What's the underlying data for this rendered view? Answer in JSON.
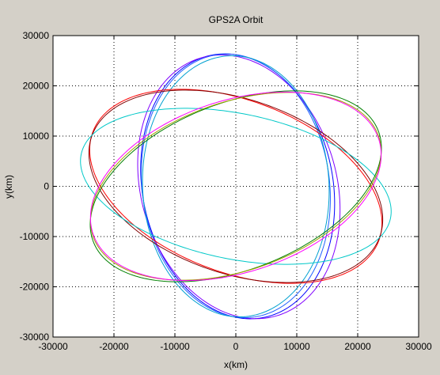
{
  "chart_data": {
    "type": "line",
    "title": "GPS2A Orbit",
    "xlabel": "x(km)",
    "ylabel": "y(km)",
    "xlim": [
      -30000,
      30000
    ],
    "ylim": [
      -30000,
      30000
    ],
    "xticks": [
      -30000,
      -20000,
      -10000,
      0,
      10000,
      20000,
      30000
    ],
    "yticks": [
      -30000,
      -20000,
      -10000,
      0,
      10000,
      20000,
      30000
    ],
    "grid": true,
    "legend": "none",
    "series": [
      {
        "color": "#0000ff",
        "ellipse": {
          "cx": 300,
          "cy": 0,
          "a": 26500,
          "b": 15700,
          "angle_deg": -83
        }
      },
      {
        "color": "#8000ff",
        "ellipse": {
          "cx": 500,
          "cy": -100,
          "a": 26500,
          "b": 16200,
          "angle_deg": -80
        }
      },
      {
        "color": "#2060ff",
        "ellipse": {
          "cx": 0,
          "cy": 100,
          "a": 26300,
          "b": 15400,
          "angle_deg": -85
        }
      },
      {
        "color": "#00a0d0",
        "ellipse": {
          "cx": 0,
          "cy": 0,
          "a": 26000,
          "b": 15300,
          "angle_deg": -88
        }
      },
      {
        "color": "#ff0000",
        "ellipse": {
          "cx": 0,
          "cy": 0,
          "a": 26000,
          "b": 16500,
          "angle_deg": -30
        }
      },
      {
        "color": "#800000",
        "ellipse": {
          "cx": 0,
          "cy": 0,
          "a": 25800,
          "b": 16800,
          "angle_deg": -28
        }
      },
      {
        "color": "#00c8c8",
        "ellipse": {
          "cx": 0,
          "cy": 0,
          "a": 26200,
          "b": 14300,
          "angle_deg": -16
        }
      },
      {
        "color": "#008000",
        "ellipse": {
          "cx": 0,
          "cy": 0,
          "a": 26000,
          "b": 16000,
          "angle_deg": 30
        }
      },
      {
        "color": "#a0a000",
        "ellipse": {
          "cx": 0,
          "cy": 0,
          "a": 25600,
          "b": 16200,
          "angle_deg": 28
        }
      },
      {
        "color": "#ff00ff",
        "ellipse": {
          "cx": 0,
          "cy": 0,
          "a": 25400,
          "b": 16600,
          "angle_deg": 27
        }
      }
    ]
  }
}
